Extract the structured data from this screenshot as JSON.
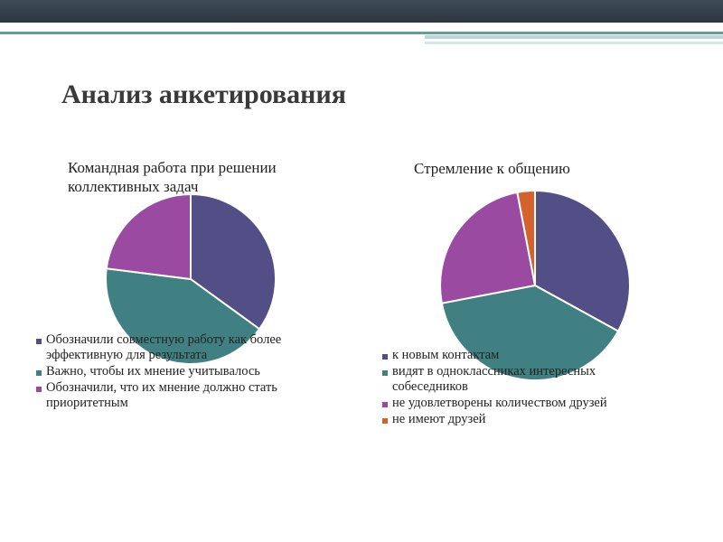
{
  "slide": {
    "title": "Анализ анкетирования"
  },
  "colors": {
    "purple_blue": "#524f87",
    "teal": "#408082",
    "magenta": "#9b4aa2",
    "orange": "#d4622d"
  },
  "chart_data": [
    {
      "type": "pie",
      "title": "Командная работа при решении коллективных задач",
      "legend_position": "bottom",
      "categories": [
        "Обозначили совместную работу как более эффективную для результата",
        "Важно, чтобы их мнение учитывалось",
        "Обозначили, что их мнение должно стать приоритетным"
      ],
      "values": [
        35,
        42,
        23
      ],
      "colors": [
        "#524f87",
        "#408082",
        "#9b4aa2"
      ]
    },
    {
      "type": "pie",
      "title": "Стремление к общению",
      "legend_position": "bottom",
      "categories": [
        "к новым контактам",
        "видят в одноклассниках интересных собеседников",
        "не удовлетворены количеством друзей",
        "не имеют друзей"
      ],
      "values": [
        33,
        39,
        25,
        3
      ],
      "colors": [
        "#524f87",
        "#408082",
        "#9b4aa2",
        "#d4622d"
      ]
    }
  ]
}
